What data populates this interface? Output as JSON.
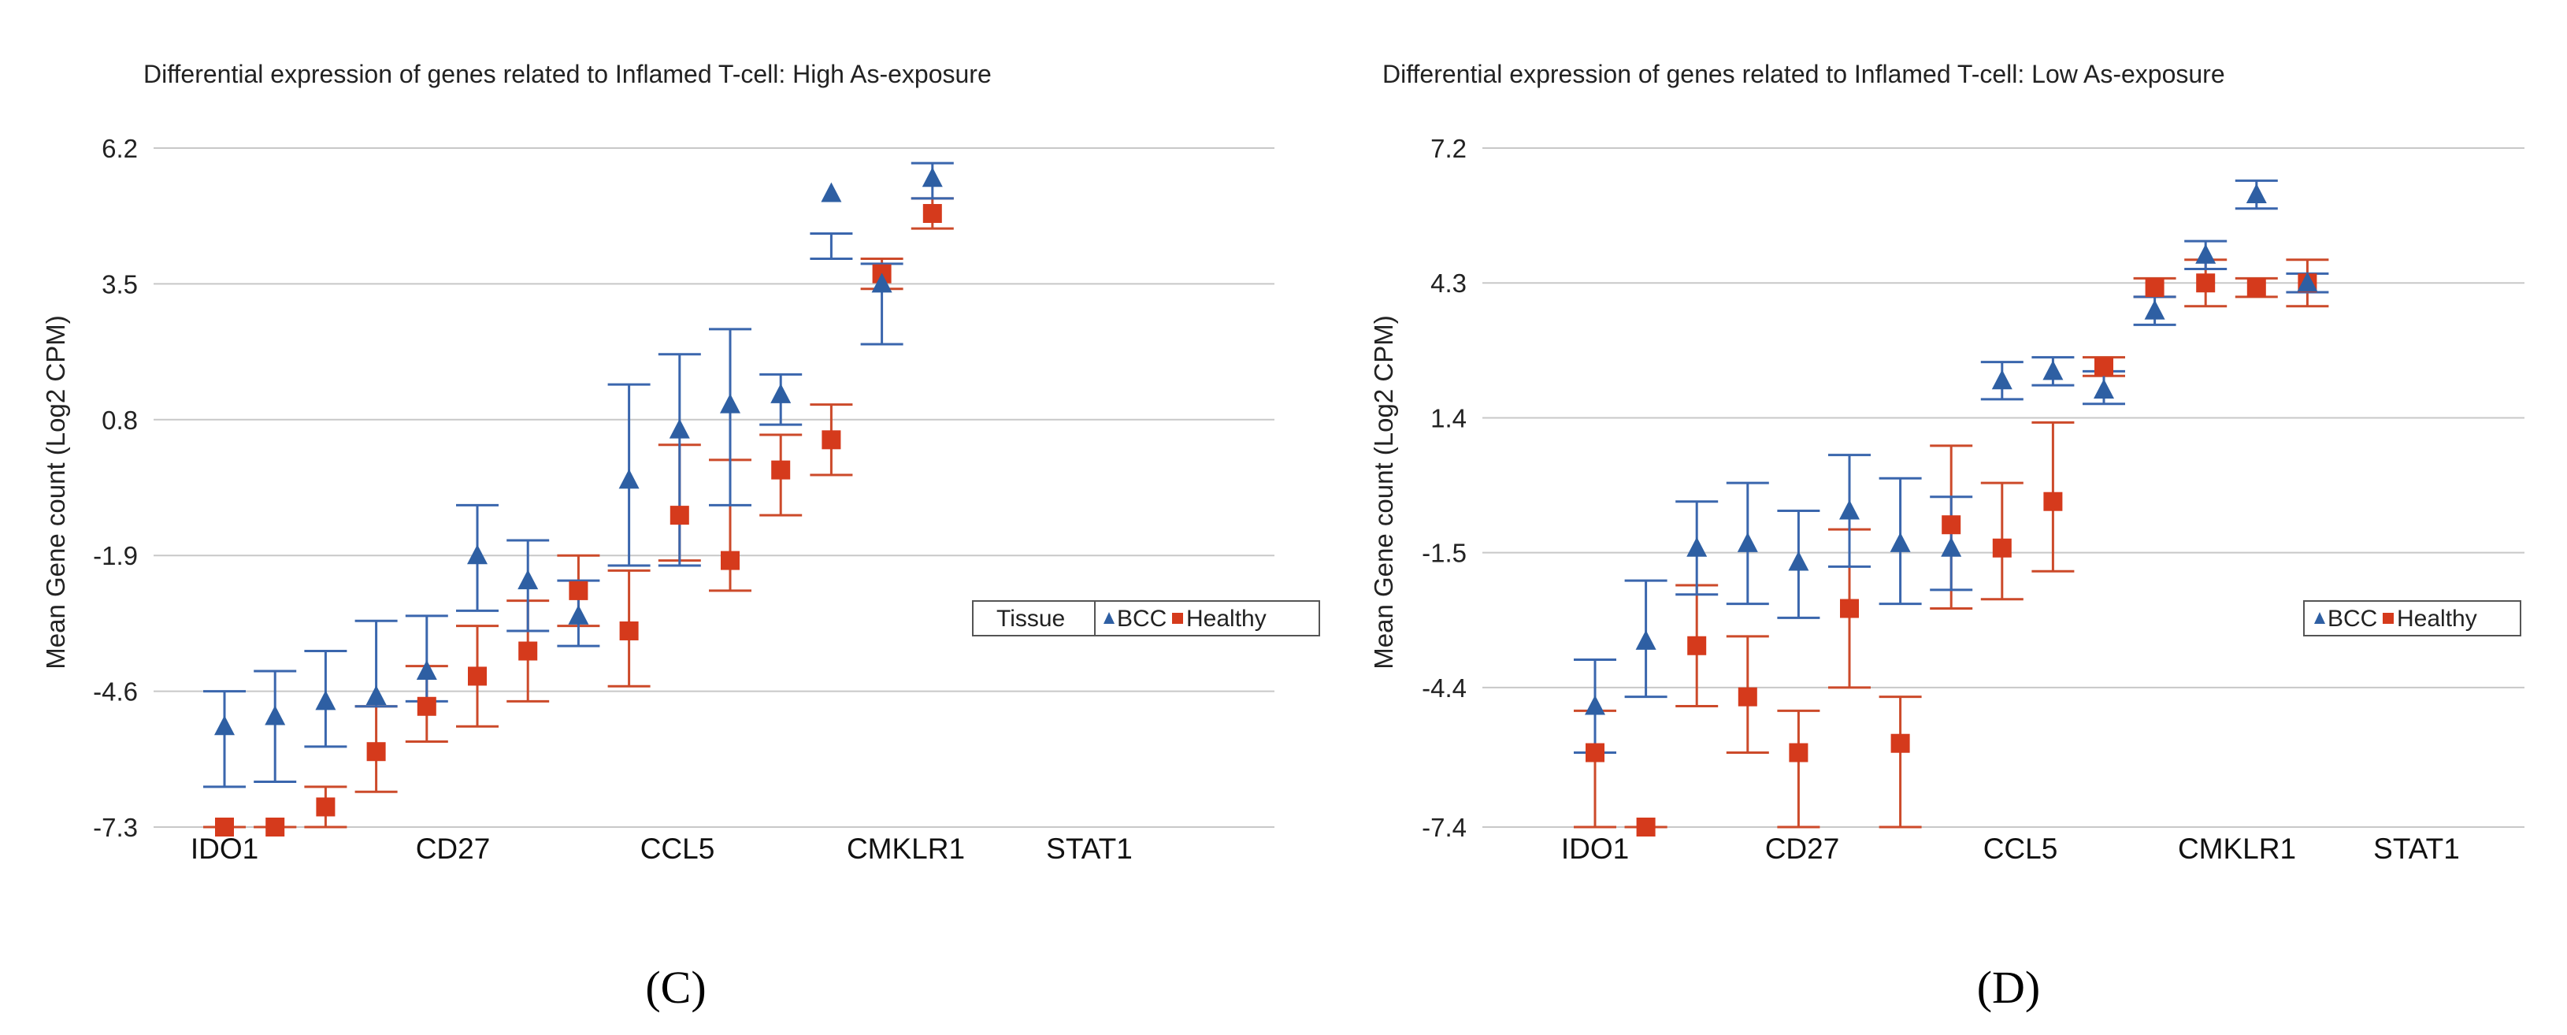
{
  "colors": {
    "bcc": "#2e5fa3",
    "healthy": "#d53a1c",
    "bcc_err": "#3a66ad",
    "healthy_err": "#cc4a2a",
    "grid": "#c8c8c8"
  },
  "chart_data": [
    {
      "type": "scatter",
      "panel_label": "(C)",
      "title": "Differential expression of genes related to Inflamed T-cell: High As-exposure",
      "ylabel": "Mean Gene count (Log2 CPM)",
      "xlabel": "",
      "ylim": [
        -7.3,
        6.2
      ],
      "yticks": [
        "6.2",
        "3.5",
        "0.8",
        "-1.9",
        "-4.6",
        "-7.3"
      ],
      "category_labels": [
        "IDO1",
        "CD27",
        "CCL5",
        "CMKLR1",
        "STAT1"
      ],
      "legend": {
        "title": "Tissue",
        "entries": [
          "BCC",
          "Healthy"
        ]
      },
      "series": [
        {
          "name": "BCC",
          "values": [
            -5.3,
            -5.1,
            -4.8,
            -4.7,
            -4.2,
            -1.9,
            -2.4,
            -3.1,
            -0.4,
            0.6,
            1.1,
            1.3,
            5.3,
            3.5,
            5.6
          ],
          "errors": [
            [
              -6.5,
              -4.6
            ],
            [
              -6.4,
              -4.2
            ],
            [
              -5.7,
              -3.8
            ],
            [
              -4.9,
              -3.2
            ],
            [
              -4.8,
              -3.1
            ],
            [
              -3.0,
              -0.9
            ],
            [
              -3.4,
              -1.6
            ],
            [
              -3.7,
              -2.4
            ],
            [
              -2.1,
              1.5
            ],
            [
              -2.1,
              2.1
            ],
            [
              -0.9,
              2.6
            ],
            [
              1.7,
              0.7
            ],
            [
              4.0,
              4.5
            ],
            [
              2.3,
              3.9
            ],
            [
              5.2,
              5.9
            ]
          ]
        },
        {
          "name": "Healthy",
          "values": [
            -7.3,
            -7.3,
            -6.9,
            -5.8,
            -4.9,
            -4.3,
            -3.8,
            -2.6,
            -3.4,
            -1.1,
            -2.0,
            -0.2,
            0.4,
            3.7,
            4.9
          ],
          "errors": [
            [
              -7.3,
              -7.3
            ],
            [
              -7.3,
              -7.3
            ],
            [
              -7.3,
              -6.5
            ],
            [
              -6.6,
              -4.9
            ],
            [
              -5.6,
              -4.1
            ],
            [
              -5.3,
              -3.3
            ],
            [
              -4.8,
              -2.8
            ],
            [
              -3.3,
              -1.9
            ],
            [
              -4.5,
              -2.2
            ],
            [
              -2.0,
              0.3
            ],
            [
              -2.6,
              0.0
            ],
            [
              -1.1,
              0.5
            ],
            [
              -0.3,
              1.1
            ],
            [
              3.4,
              4.0
            ],
            [
              4.6,
              5.2
            ]
          ]
        }
      ]
    },
    {
      "type": "scatter",
      "panel_label": "(D)",
      "title": "Differential expression of genes related to Inflamed T-cell: Low As-exposure",
      "ylabel": "Mean Gene count (Log2 CPM)",
      "xlabel": "",
      "ylim": [
        -7.4,
        7.2
      ],
      "yticks": [
        "7.2",
        "4.3",
        "1.4",
        "-1.5",
        "-4.4",
        "-7.4"
      ],
      "category_labels": [
        "IDO1",
        "CD27",
        "CCL5",
        "CMKLR1",
        "STAT1"
      ],
      "legend": {
        "title": "",
        "entries": [
          "BCC",
          "Healthy"
        ]
      },
      "series": [
        {
          "name": "BCC",
          "values": [
            -4.8,
            -3.4,
            -1.4,
            -1.3,
            -1.7,
            -0.6,
            -1.3,
            -1.4,
            2.2,
            2.4,
            2.0,
            3.7,
            4.9,
            6.2,
            4.3
          ],
          "errors": [
            [
              -5.8,
              -3.8
            ],
            [
              -4.6,
              -2.1
            ],
            [
              -2.4,
              -0.4
            ],
            [
              -2.6,
              0.0
            ],
            [
              -2.9,
              -0.6
            ],
            [
              -1.8,
              0.6
            ],
            [
              -2.6,
              0.1
            ],
            [
              -2.3,
              -0.3
            ],
            [
              1.8,
              2.6
            ],
            [
              2.1,
              2.7
            ],
            [
              1.7,
              2.4
            ],
            [
              3.4,
              4.0
            ],
            [
              4.6,
              5.2
            ],
            [
              5.9,
              6.5
            ],
            [
              4.1,
              4.5
            ]
          ]
        },
        {
          "name": "Healthy",
          "values": [
            -5.8,
            -7.4,
            -3.5,
            -4.6,
            -5.8,
            -2.7,
            -5.6,
            -0.9,
            -1.4,
            -0.4,
            2.5,
            4.2,
            4.3,
            4.2,
            4.3
          ],
          "errors": [
            [
              -7.4,
              -4.9
            ],
            [
              -7.4,
              -7.4
            ],
            [
              -4.8,
              -2.2
            ],
            [
              -5.8,
              -3.3
            ],
            [
              -7.4,
              -4.9
            ],
            [
              -4.4,
              -1.0
            ],
            [
              -7.4,
              -4.6
            ],
            [
              -2.7,
              0.8
            ],
            [
              -2.5,
              0.0
            ],
            [
              -1.9,
              1.3
            ],
            [
              2.3,
              2.7
            ],
            [
              4.0,
              4.4
            ],
            [
              3.8,
              4.8
            ],
            [
              4.0,
              4.4
            ],
            [
              3.8,
              4.8
            ]
          ]
        }
      ]
    }
  ]
}
